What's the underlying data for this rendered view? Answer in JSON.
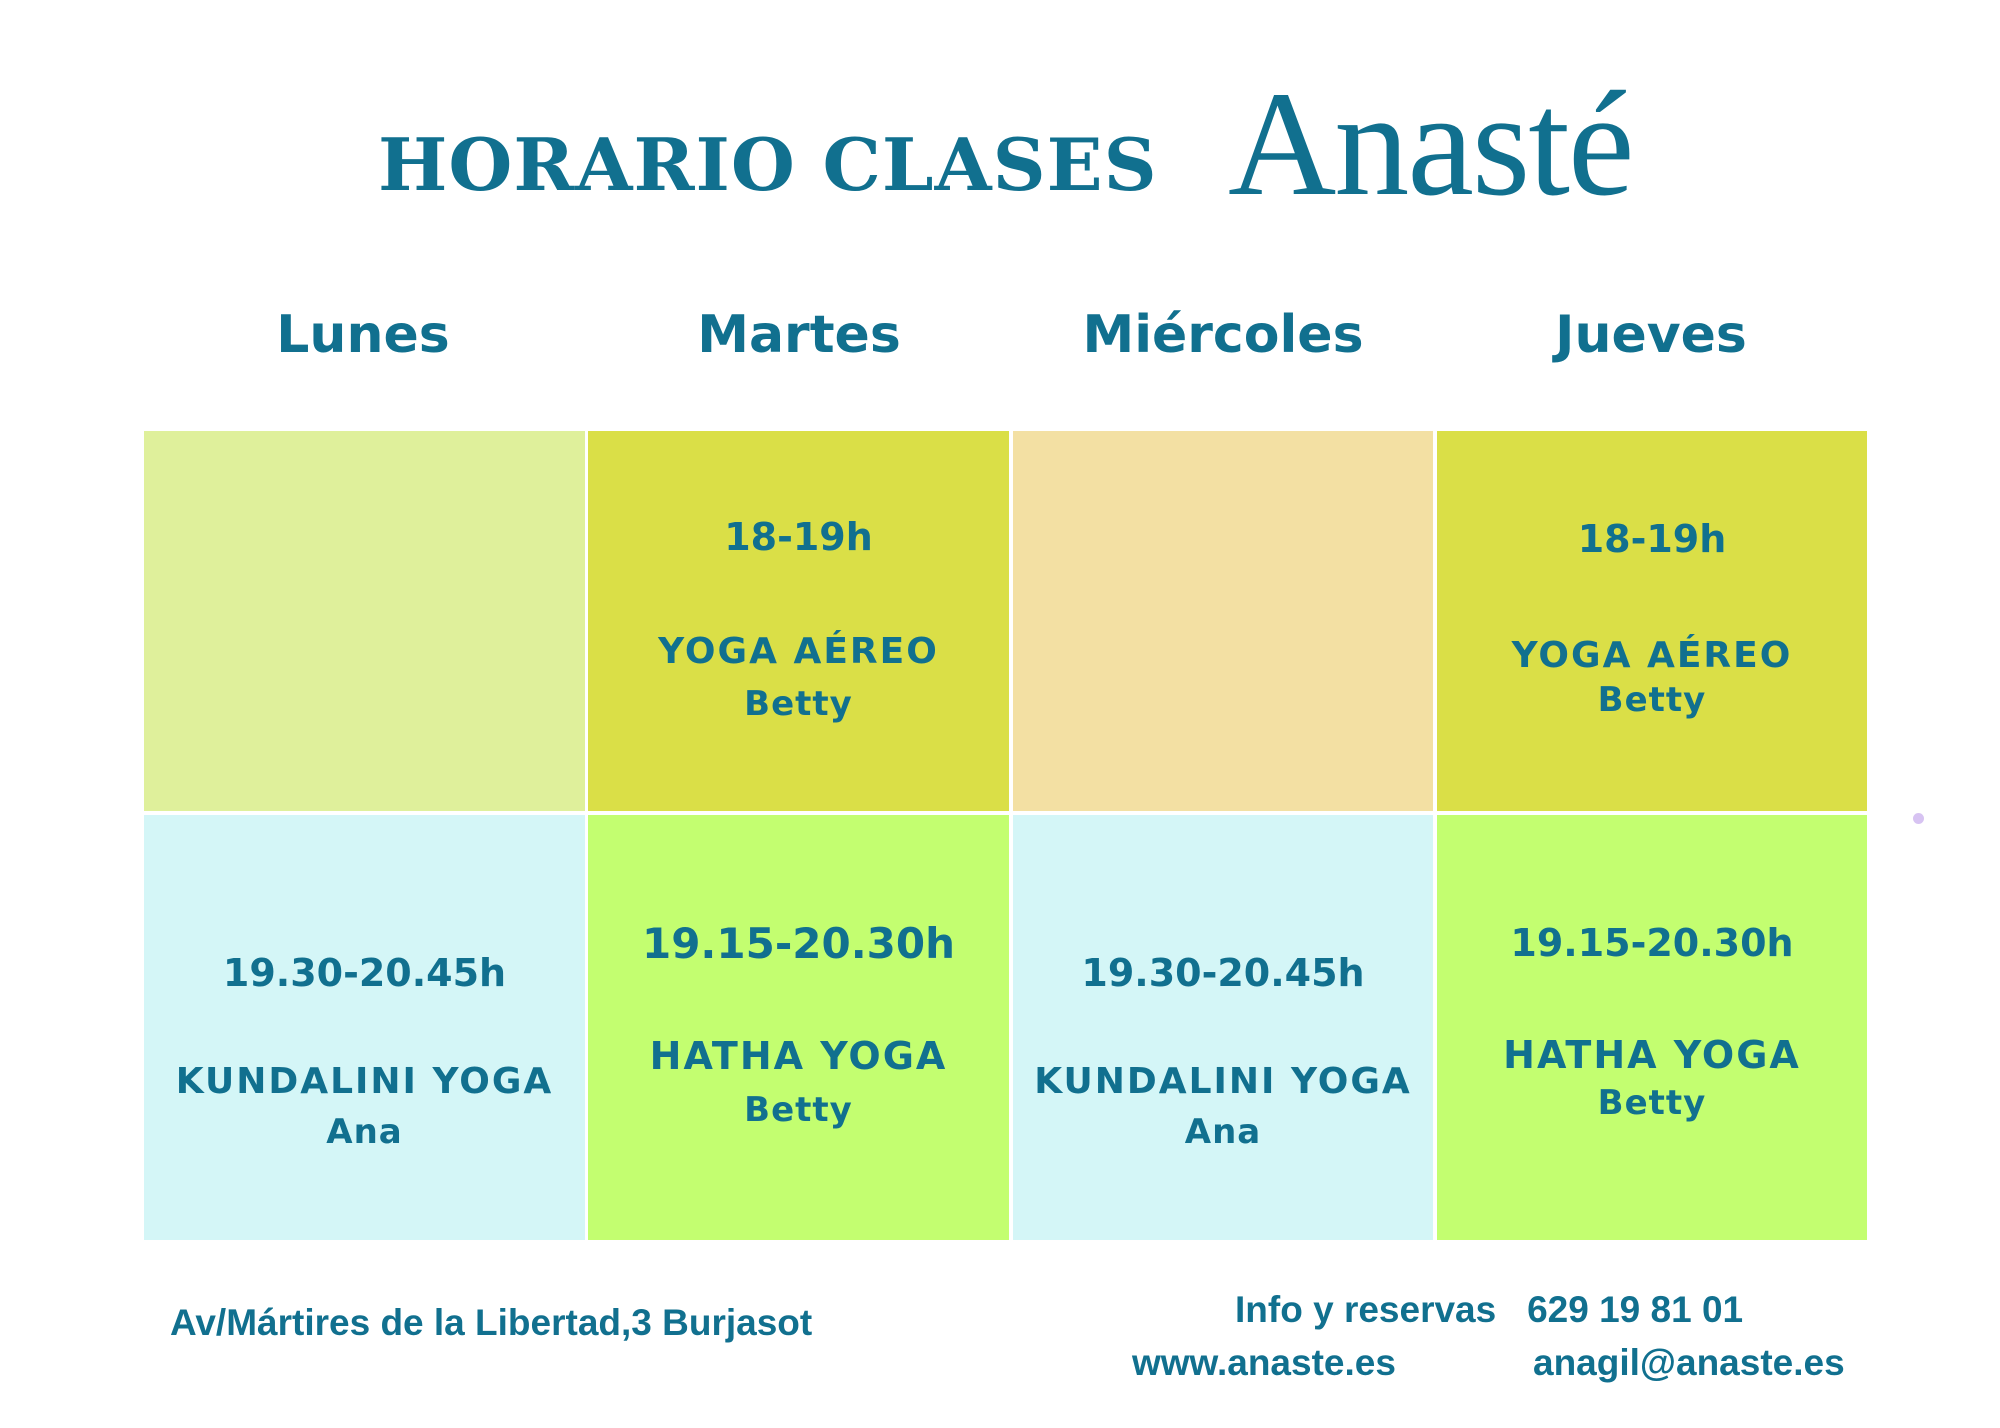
{
  "header": {
    "title": "HORARIO CLASES",
    "logo_text": "Anasté"
  },
  "days": [
    "Lunes",
    "Martes",
    "Miércoles",
    "Jueves"
  ],
  "colors": {
    "text": "#11708f",
    "row1": [
      "#dff09b",
      "#dadf47",
      "#f3e0a3",
      "#dadf47"
    ],
    "row2": [
      "#d4f6f7",
      "#c3fe70",
      "#d4f6f7",
      "#c3fe70"
    ]
  },
  "schedule": {
    "row1": [
      {},
      {
        "time": "18-19h",
        "class": "YOGA AÉREO",
        "teacher": "Betty"
      },
      {},
      {
        "time": "18-19h",
        "class": "YOGA AÉREO",
        "teacher": "Betty"
      }
    ],
    "row2": [
      {
        "time": "19.30-20.45h",
        "class": "KUNDALINI YOGA",
        "teacher": "Ana"
      },
      {
        "time": "19.15-20.30h",
        "class": "HATHA YOGA",
        "teacher": "Betty"
      },
      {
        "time": "19.30-20.45h",
        "class": "KUNDALINI YOGA",
        "teacher": "Ana"
      },
      {
        "time": "19.15-20.30h",
        "class": "HATHA YOGA",
        "teacher": "Betty"
      }
    ]
  },
  "footer": {
    "address": "Av/Mártires de la Libertad,3 Burjasot",
    "info_label": "Info y reservas",
    "phone": "629 19 81 01",
    "website": "www.anaste.es",
    "email": "anagil@anaste.es"
  }
}
